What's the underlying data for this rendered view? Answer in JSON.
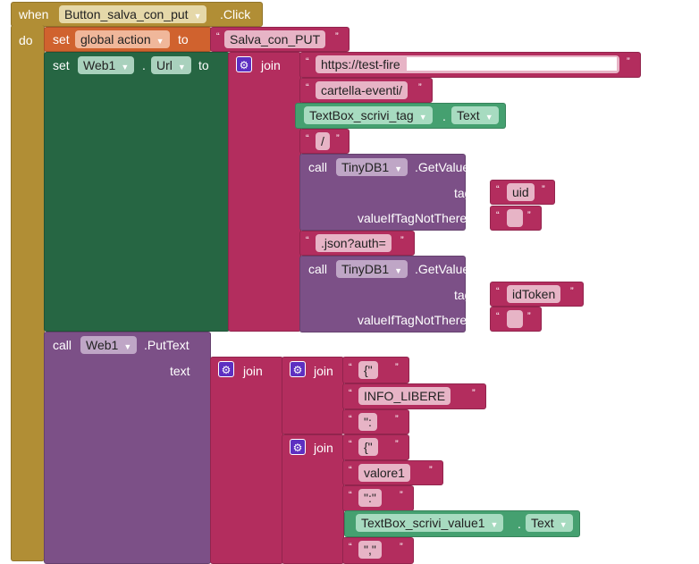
{
  "event": {
    "when": "when",
    "component": "Button_salva_con_put",
    "event": ".Click",
    "do": "do"
  },
  "set_global": {
    "set": "set",
    "var": "global action",
    "to": "to",
    "value": "Salva_con_PUT"
  },
  "set_url": {
    "set": "set",
    "component": "Web1",
    "dot": ".",
    "prop": "Url",
    "to": "to",
    "join": "join",
    "items": [
      "https://test-fire",
      "cartella-eventi/",
      "/",
      ".json?auth="
    ],
    "textbox": {
      "component": "TextBox_scrivi_tag",
      "dot": ".",
      "prop": "Text"
    },
    "tinydb1": {
      "call": "call",
      "component": "TinyDB1",
      "method": ".GetValue",
      "tag_label": "tag",
      "tag": "uid",
      "default_label": "valueIfTagNotThere",
      "default": ""
    },
    "tinydb2": {
      "call": "call",
      "component": "TinyDB1",
      "method": ".GetValue",
      "tag_label": "tag",
      "tag": "idToken",
      "default_label": "valueIfTagNotThere",
      "default": ""
    }
  },
  "puttext": {
    "call": "call",
    "component": "Web1",
    "method": ".PutText",
    "text_label": "text",
    "join": "join",
    "join1": {
      "join": "join",
      "items": [
        "{\"",
        "INFO_LIBERE",
        "\":"
      ]
    },
    "join2": {
      "join": "join",
      "items": [
        "{\"",
        "valore1",
        "\":\"",
        "\",\""
      ],
      "textbox": {
        "component": "TextBox_scrivi_value1",
        "dot": ".",
        "prop": "Text"
      }
    }
  },
  "colors": {
    "event": "#b18e35",
    "variable": "#d0622e",
    "component_set": "#266643",
    "component_get": "#45a070",
    "text": "#b32d5e",
    "method": "#7c5087"
  }
}
